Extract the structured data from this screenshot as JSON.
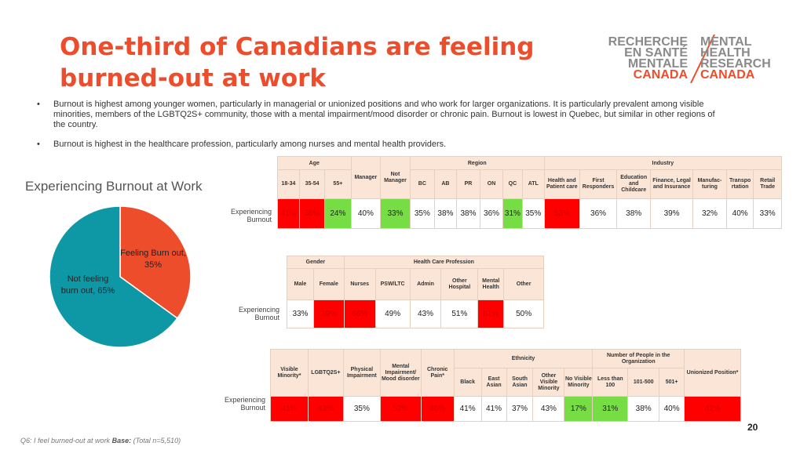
{
  "title": "One-third of Canadians are feeling burned-out at work",
  "logo": {
    "left_lines": [
      "RECHERCHE",
      "EN SANTÉ",
      "MENTALE",
      "CANADA"
    ],
    "right_lines": [
      "MENTAL",
      "HEALTH",
      "RESEARCH",
      "CANADA"
    ]
  },
  "bullets": [
    "Burnout is highest among younger women, particularly in managerial or unionized positions and who work for larger organizations. It is particularly prevalent among visible minorities, members of the LGBTQ2S+ community, those with a mental impairment/mood disorder or chronic pain.  Burnout is lowest in Quebec, but similar in other regions of the country.",
    "Burnout is highest in the healthcare profession, particularly among nurses and mental health providers."
  ],
  "pie": {
    "title": "Experiencing Burnout at Work",
    "slices": [
      {
        "label": "Feeling Burn out, 35%",
        "value": 35,
        "color": "#ee4d2b"
      },
      {
        "label": "Not feeling burn out, 65%",
        "value": 65,
        "color": "#0e98a5"
      }
    ]
  },
  "row_label": "Experiencing Burnout",
  "table1": {
    "groups": [
      "Age",
      "Region",
      "Industry"
    ],
    "manager_header": "Manager",
    "not_manager_header": "Not Manager",
    "age_cols": [
      "18-34",
      "35-54",
      "55+"
    ],
    "region_cols": [
      "BC",
      "AB",
      "PR",
      "ON",
      "QC",
      "ATL"
    ],
    "industry_cols": [
      "Health and Patient care",
      "First Responders",
      "Education and Childcare",
      "Finance, Legal and Insurance",
      "Manufac-turing",
      "Transpo rtation",
      "Retail Trade"
    ],
    "values": [
      "41%",
      "36%",
      "24%",
      "40%",
      "33%",
      "35%",
      "38%",
      "38%",
      "36%",
      "31%",
      "35%",
      "53%",
      "36%",
      "38%",
      "39%",
      "32%",
      "40%",
      "33%"
    ]
  },
  "table2": {
    "groups": [
      "Gender",
      "Health Care Profession"
    ],
    "cols": [
      "Male",
      "Female",
      "Nurses",
      "PSW/LTC",
      "Admin",
      "Other Hospital",
      "Mental Health",
      "Other"
    ],
    "values": [
      "33%",
      "39%",
      "66%",
      "49%",
      "43%",
      "51%",
      "61%",
      "50%"
    ]
  },
  "table3": {
    "single_cols": [
      "Visible Minority*",
      "LGBTQ2S+",
      "Physical Impairment",
      "Mental Impairment/ Mood disorder",
      "Chronic Pain*"
    ],
    "ethnicity_group": "Ethnicity",
    "ethnicity_cols": [
      "Black",
      "East Asian",
      "South Asian",
      "Other Visible Minority",
      "No Visible Minority"
    ],
    "org_group": "Number of People in the Organization",
    "org_cols": [
      "Less than 100",
      "101-500",
      "501+"
    ],
    "union_col": "Unionized Position*",
    "values": [
      "41%",
      "43%",
      "35%",
      "52%",
      "46%",
      "41%",
      "41%",
      "37%",
      "43%",
      "17%",
      "31%",
      "38%",
      "40%",
      "42%"
    ]
  },
  "footnote": {
    "question": "Q6: I feel burned-out at work",
    "base_label": "Base:",
    "base_value": "(Total n=5,510)"
  },
  "page_number": "20"
}
